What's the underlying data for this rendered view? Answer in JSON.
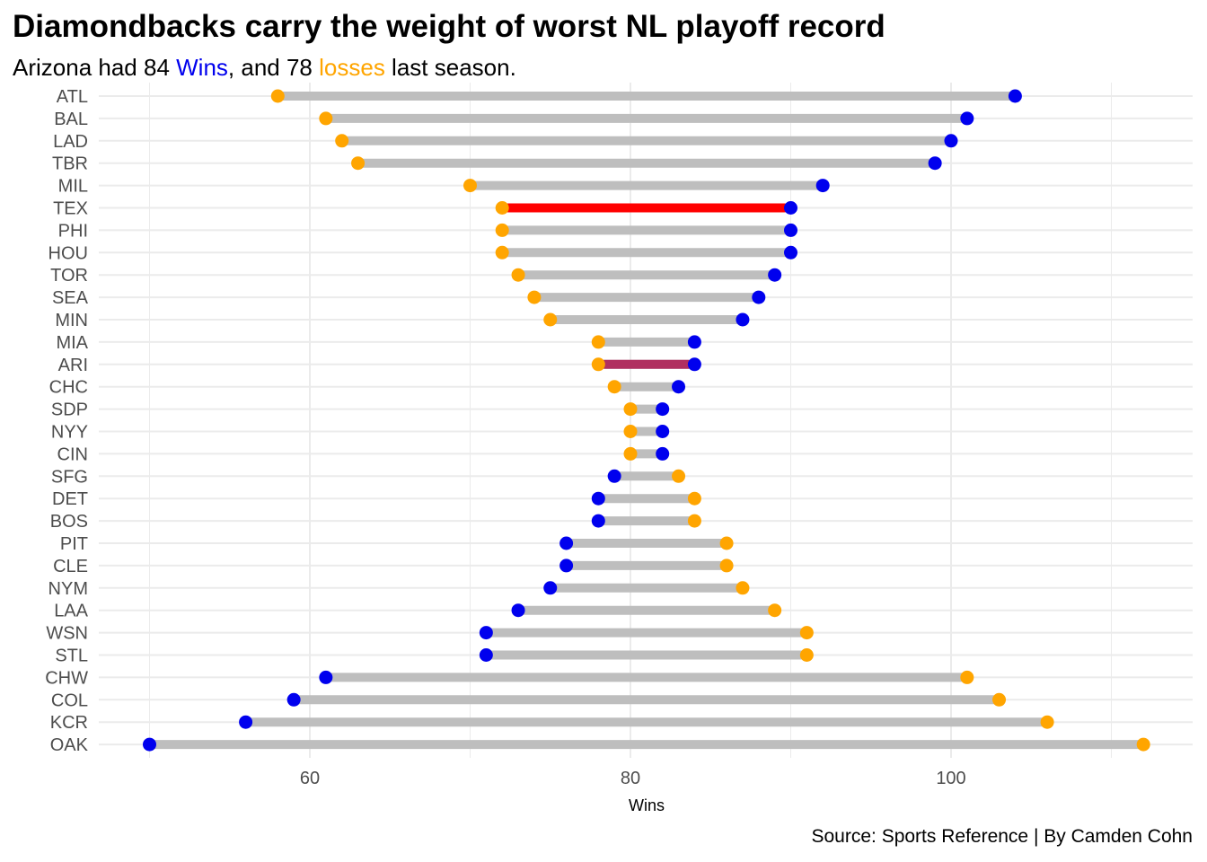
{
  "title": "Diamondbacks carry the weight of worst NL playoff record",
  "subtitle": {
    "prefix": "Arizona had 84 ",
    "wins_word": "Wins",
    "middle": ", and 78 ",
    "losses_word": "losses",
    "suffix": " last season."
  },
  "caption": "Source: Sports Reference | By Camden Cohn",
  "colors": {
    "wins": "#0000ee",
    "losses": "#ffa500",
    "segment": "#bebebe",
    "tex_segment": "#ff0000",
    "ari_segment": "#b03060",
    "grid": "#ebebeb"
  },
  "chart_data": {
    "type": "dumbbell",
    "xlabel": "Wins",
    "ylabel": "",
    "xlim": [
      48,
      114
    ],
    "x_ticks": [
      60,
      80,
      100
    ],
    "grid": true,
    "series_names": [
      "Wins",
      "Losses"
    ],
    "categories": [
      "ATL",
      "BAL",
      "LAD",
      "TBR",
      "MIL",
      "TEX",
      "PHI",
      "HOU",
      "TOR",
      "SEA",
      "MIN",
      "MIA",
      "ARI",
      "CHC",
      "SDP",
      "NYY",
      "CIN",
      "SFG",
      "DET",
      "BOS",
      "PIT",
      "CLE",
      "NYM",
      "LAA",
      "WSN",
      "STL",
      "CHW",
      "COL",
      "KCR",
      "OAK"
    ],
    "wins": [
      104,
      101,
      100,
      99,
      92,
      90,
      90,
      90,
      89,
      88,
      87,
      84,
      84,
      83,
      82,
      82,
      82,
      79,
      78,
      78,
      76,
      76,
      75,
      73,
      71,
      71,
      61,
      59,
      56,
      50
    ],
    "losses": [
      58,
      61,
      62,
      63,
      70,
      72,
      72,
      72,
      73,
      74,
      75,
      78,
      78,
      79,
      80,
      80,
      80,
      83,
      84,
      84,
      86,
      86,
      87,
      89,
      91,
      91,
      101,
      103,
      106,
      112
    ],
    "highlights": [
      {
        "team": "TEX",
        "color_key": "tex_segment"
      },
      {
        "team": "ARI",
        "color_key": "ari_segment"
      }
    ]
  }
}
